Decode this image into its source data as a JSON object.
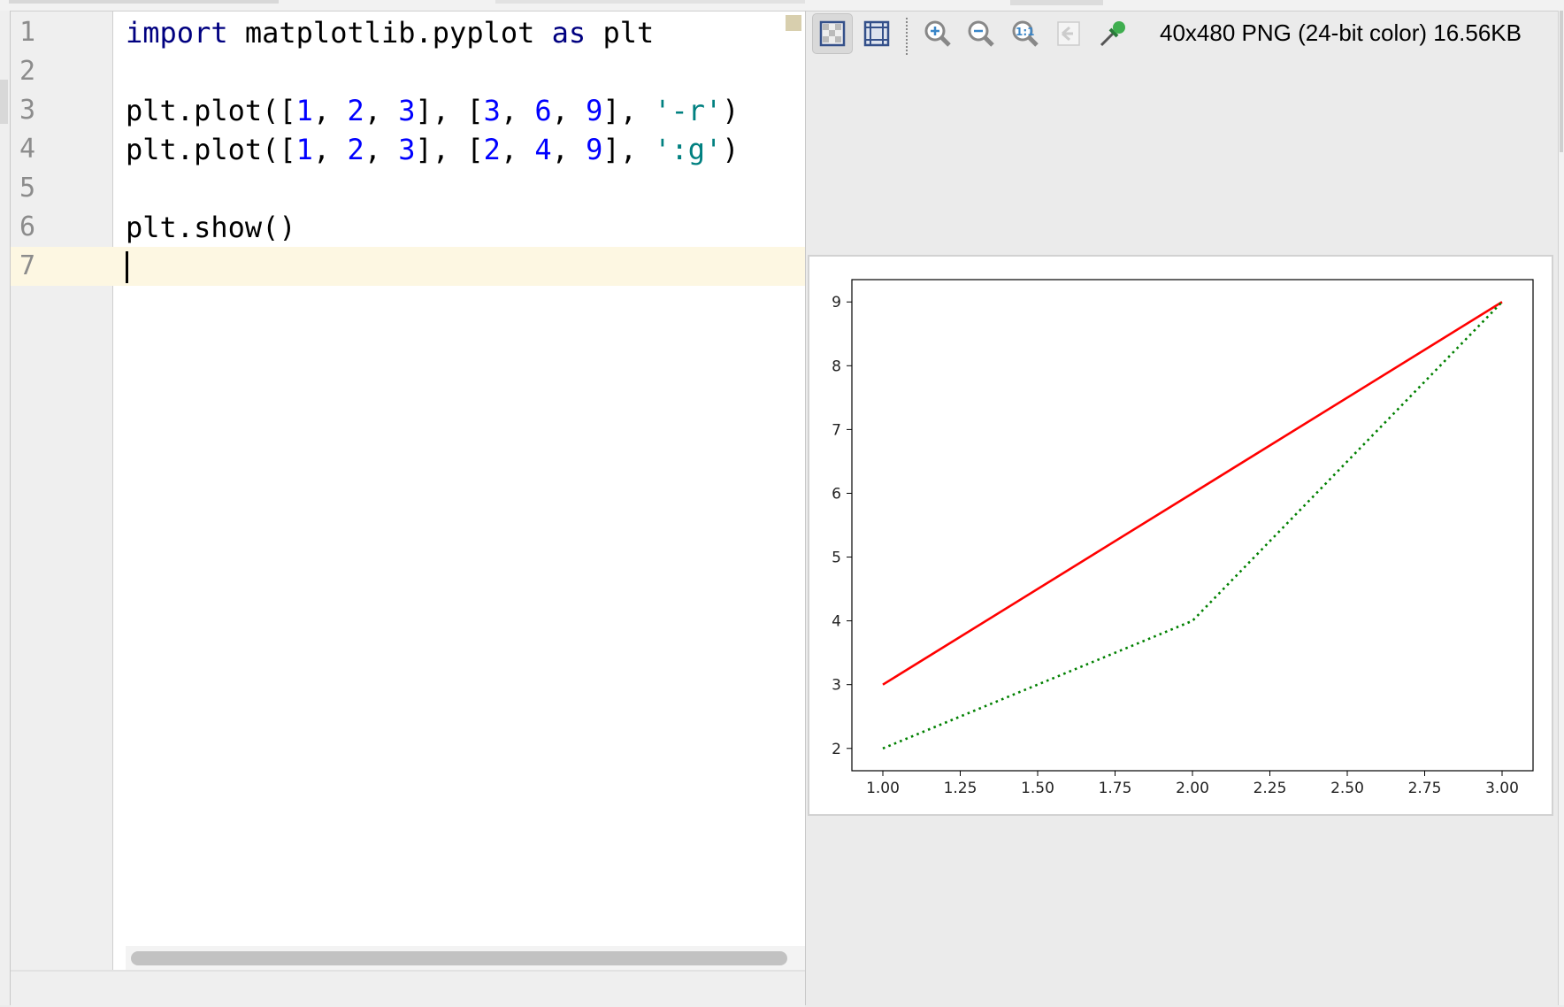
{
  "editor": {
    "lines": [
      {
        "number": "1",
        "tokens": [
          {
            "t": "import",
            "c": "kw"
          },
          {
            "t": " matplotlib.pyplot "
          },
          {
            "t": "as",
            "c": "kw"
          },
          {
            "t": " plt"
          }
        ]
      },
      {
        "number": "2",
        "tokens": []
      },
      {
        "number": "3",
        "tokens": [
          {
            "t": "plt.plot(["
          },
          {
            "t": "1",
            "c": "num"
          },
          {
            "t": ", "
          },
          {
            "t": "2",
            "c": "num"
          },
          {
            "t": ", "
          },
          {
            "t": "3",
            "c": "num"
          },
          {
            "t": "], ["
          },
          {
            "t": "3",
            "c": "num"
          },
          {
            "t": ", "
          },
          {
            "t": "6",
            "c": "num"
          },
          {
            "t": ", "
          },
          {
            "t": "9",
            "c": "num"
          },
          {
            "t": "], "
          },
          {
            "t": "'-r'",
            "c": "str"
          },
          {
            "t": ")"
          }
        ]
      },
      {
        "number": "4",
        "tokens": [
          {
            "t": "plt.plot(["
          },
          {
            "t": "1",
            "c": "num"
          },
          {
            "t": ", "
          },
          {
            "t": "2",
            "c": "num"
          },
          {
            "t": ", "
          },
          {
            "t": "3",
            "c": "num"
          },
          {
            "t": "], ["
          },
          {
            "t": "2",
            "c": "num"
          },
          {
            "t": ", "
          },
          {
            "t": "4",
            "c": "num"
          },
          {
            "t": ", "
          },
          {
            "t": "9",
            "c": "num"
          },
          {
            "t": "], "
          },
          {
            "t": "':g'",
            "c": "str"
          },
          {
            "t": ")"
          }
        ]
      },
      {
        "number": "5",
        "tokens": []
      },
      {
        "number": "6",
        "tokens": [
          {
            "t": "plt.show()"
          }
        ]
      },
      {
        "number": "7",
        "tokens": [],
        "current": true
      }
    ]
  },
  "viewer": {
    "toolbar": [
      {
        "name": "checkerboard-background-icon",
        "selected": true
      },
      {
        "name": "grid-icon"
      },
      {
        "name": "zoom-in-icon"
      },
      {
        "name": "zoom-out-icon"
      },
      {
        "name": "actual-size-icon"
      },
      {
        "name": "fit-icon",
        "disabled": true
      },
      {
        "name": "color-picker-icon"
      }
    ],
    "image_info": "40x480 PNG (24-bit color) 16.56KB"
  },
  "chart_data": {
    "type": "line",
    "title": "",
    "xlabel": "",
    "ylabel": "",
    "xlim": [
      0.9,
      3.1
    ],
    "ylim": [
      1.65,
      9.35
    ],
    "xticks": [
      "1.00",
      "1.25",
      "1.50",
      "1.75",
      "2.00",
      "2.25",
      "2.50",
      "2.75",
      "3.00"
    ],
    "yticks": [
      "2",
      "3",
      "4",
      "5",
      "6",
      "7",
      "8",
      "9"
    ],
    "grid": false,
    "series": [
      {
        "x": [
          1,
          2,
          3
        ],
        "y": [
          3,
          6,
          9
        ],
        "color": "#ff0000",
        "style": "solid"
      },
      {
        "x": [
          1,
          2,
          3
        ],
        "y": [
          2,
          4,
          9
        ],
        "color": "#008000",
        "style": "dotted"
      }
    ]
  }
}
